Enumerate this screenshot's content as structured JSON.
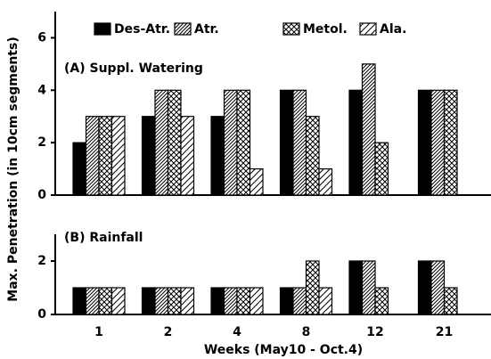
{
  "chart_data": [
    {
      "type": "bar",
      "annotation": "(A) Suppl. Watering",
      "ylabel": "Max. Penetration (in 10cm segments)",
      "ylim": [
        0,
        7
      ],
      "yticks": [
        0,
        2,
        4,
        6
      ],
      "series": [
        {
          "name": "Des-Atr.",
          "color": "#000000",
          "pattern": "solid",
          "values": [
            2,
            3,
            3,
            4,
            4,
            4
          ]
        },
        {
          "name": "Atr.",
          "color": "#000000",
          "pattern": "hatch",
          "values": [
            3,
            4,
            4,
            4,
            5,
            4
          ]
        },
        {
          "name": "Metol.",
          "color": "#000000",
          "pattern": "cross",
          "values": [
            3,
            4,
            4,
            3,
            2,
            4
          ]
        },
        {
          "name": "Ala.",
          "color": "#000000",
          "pattern": "sparse",
          "values": [
            3,
            3,
            1,
            1,
            0,
            null
          ]
        }
      ]
    },
    {
      "type": "bar",
      "annotation": "(B) Rainfall",
      "xlabel": "Weeks (May10 - Oct.4)",
      "categories": [
        "1",
        "2",
        "4",
        "8",
        "12",
        "21"
      ],
      "ylim": [
        0,
        3
      ],
      "yticks": [
        0,
        2
      ],
      "series": [
        {
          "color": "#000000",
          "pattern": "solid",
          "values": [
            1,
            1,
            1,
            1,
            2,
            2
          ]
        },
        {
          "color": "#000000",
          "pattern": "hatch",
          "values": [
            1,
            1,
            1,
            1,
            2,
            2
          ]
        },
        {
          "color": "#000000",
          "pattern": "cross",
          "values": [
            1,
            1,
            1,
            2,
            1,
            1
          ]
        },
        {
          "color": "#000000",
          "pattern": "sparse",
          "values": [
            1,
            1,
            1,
            1,
            0,
            null
          ]
        }
      ]
    }
  ]
}
